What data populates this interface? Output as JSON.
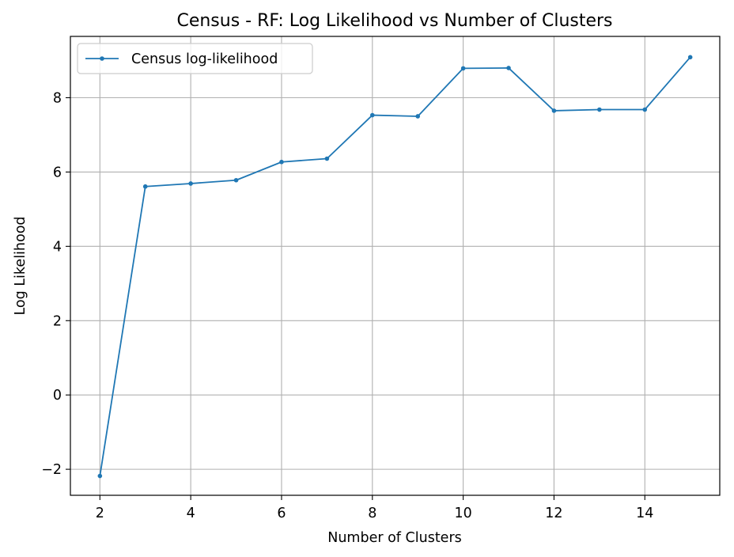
{
  "chart_data": {
    "type": "line",
    "title": "Census - RF: Log Likelihood vs Number of Clusters",
    "xlabel": "Number of Clusters",
    "ylabel": "Log Likelihood",
    "xlim": [
      1.35,
      15.65
    ],
    "ylim": [
      -2.7,
      9.65
    ],
    "xticks": [
      2,
      4,
      6,
      8,
      10,
      12,
      14
    ],
    "yticks": [
      -2,
      0,
      2,
      4,
      6,
      8
    ],
    "ytick_labels": [
      "−2",
      "0",
      "2",
      "4",
      "6",
      "8"
    ],
    "grid": true,
    "legend_position": "top-left",
    "series": [
      {
        "name": "Census log-likelihood",
        "color": "#1f77b4",
        "marker": "circle",
        "x": [
          2,
          3,
          4,
          5,
          6,
          7,
          8,
          9,
          10,
          11,
          12,
          13,
          14,
          15
        ],
        "y": [
          -2.18,
          5.61,
          5.69,
          5.78,
          6.27,
          6.36,
          7.53,
          7.5,
          8.79,
          8.8,
          7.65,
          7.68,
          7.68,
          9.09
        ]
      }
    ]
  }
}
